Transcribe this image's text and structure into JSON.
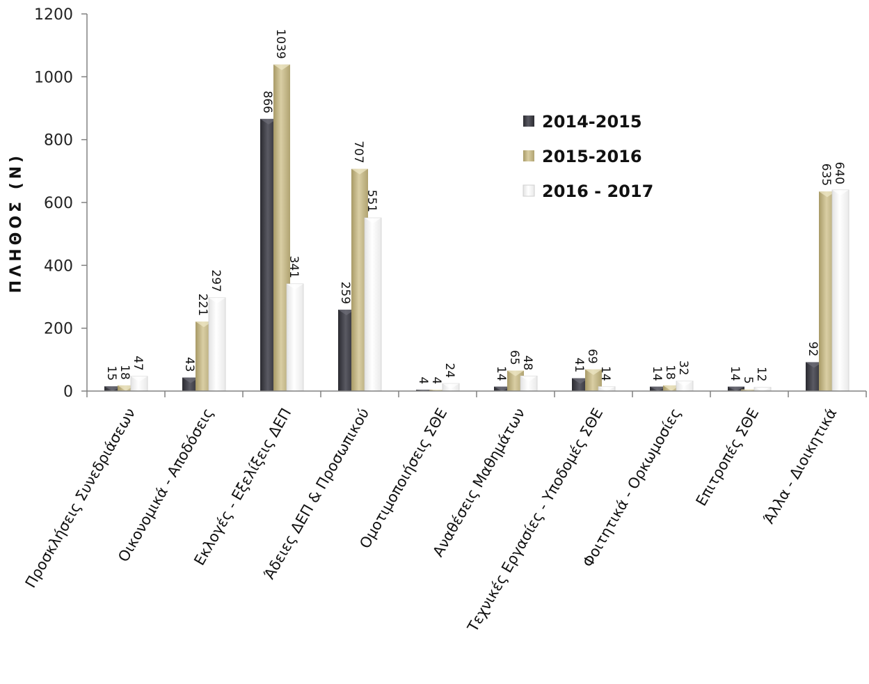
{
  "chart_data": {
    "type": "bar",
    "title": "",
    "xlabel": "",
    "ylabel": "ΠΛΗΘΟΣ (Ν)",
    "ylim": [
      0,
      1200
    ],
    "yticks": [
      0,
      200,
      400,
      600,
      800,
      1000,
      1200
    ],
    "grid": false,
    "legend_position": "right",
    "categories": [
      "Προσκλήσεις Συνεδριάσεων",
      "Οικονομικά - Αποδόσεις",
      "Εκλογές - Εξελίξεις ΔΕΠ",
      "Άδειες ΔΕΠ & Προσωπικού",
      "Ομοτιμοποιήσεις ΣΘΕ",
      "Αναθέσεις Μαθημάτων",
      "Τεχνικές Εργασίες - Υποδομές ΣΘΕ",
      "Φοιτητικά - Ορκωμοσίες",
      "Επιτροπές ΣΘΕ",
      "Άλλα - Διοικητικά"
    ],
    "series": [
      {
        "name": "2014-2015",
        "color": "#3d3d44",
        "values": [
          15,
          43,
          866,
          259,
          4,
          14,
          41,
          14,
          14,
          92
        ]
      },
      {
        "name": "2015-2016",
        "color": "#c9bd8d",
        "values": [
          18,
          221,
          1039,
          707,
          4,
          65,
          69,
          18,
          5,
          635
        ]
      },
      {
        "name": "2016 - 2017",
        "color": "#f4f4f4",
        "values": [
          47,
          297,
          341,
          551,
          24,
          48,
          14,
          32,
          12,
          640
        ]
      }
    ]
  }
}
